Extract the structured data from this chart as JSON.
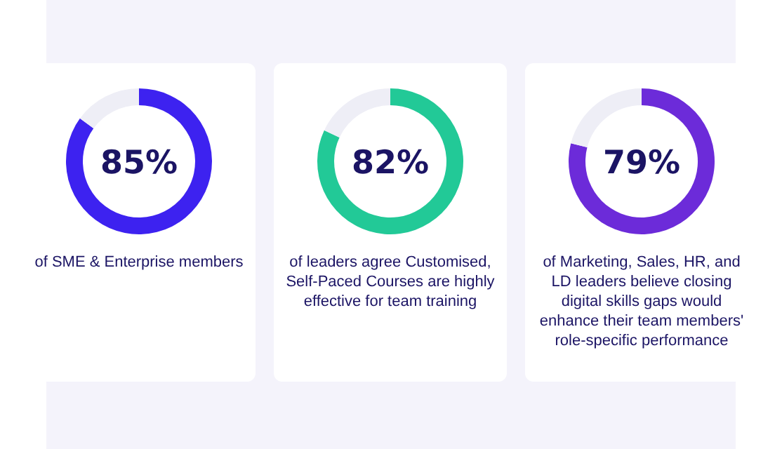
{
  "chart_data": [
    {
      "type": "donut",
      "categories": [
        null,
        null
      ],
      "values": [
        85,
        15
      ],
      "colors": [
        "#3d22f0",
        "#eeeef6"
      ],
      "value_labels": [
        "85%",
        null
      ],
      "annotations": [
        "of SME & Enterprise members"
      ]
    },
    {
      "type": "donut",
      "categories": [
        null,
        null
      ],
      "values": [
        82,
        18
      ],
      "colors": [
        "#22c997",
        "#eeeef6"
      ],
      "value_labels": [
        "82%",
        null
      ],
      "annotations": [
        "of leaders agree Customised, Self-Paced Courses are highly effective for team training"
      ]
    },
    {
      "type": "donut",
      "categories": [
        null,
        null
      ],
      "values": [
        79,
        21
      ],
      "colors": [
        "#6c2bd9",
        "#eeeef6"
      ],
      "value_labels": [
        "79%",
        null
      ],
      "annotations": [
        "of Marketing, Sales, HR, and LD leaders believe closing digital skills gaps would enhance their team members' role-specific performance"
      ]
    }
  ]
}
